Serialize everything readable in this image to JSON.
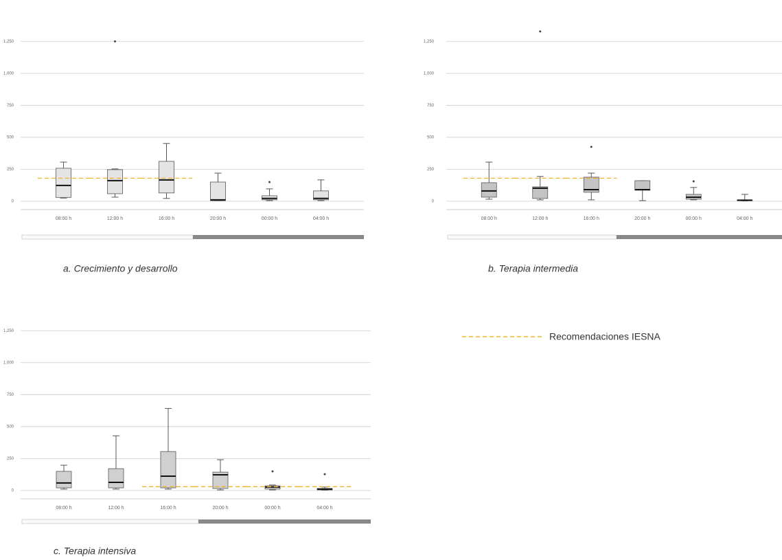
{
  "chart_data": [
    {
      "type": "box",
      "title": "a. Crecimiento y desarrollo",
      "color": "#e4e4e4",
      "categories": [
        "08:00 h",
        "12:00 h",
        "16:00 h",
        "20:00 h",
        "00:00 h",
        "04:00 h"
      ],
      "boxes": [
        [
          25,
          30,
          124,
          258,
          306
        ],
        [
          32,
          59,
          161,
          247,
          253
        ],
        [
          22,
          65,
          167,
          312,
          452
        ],
        [
          5,
          5,
          11,
          150,
          220
        ],
        [
          5,
          11,
          22,
          43,
          97
        ],
        [
          5,
          11,
          22,
          81,
          167
        ]
      ],
      "outliers": [
        [],
        [
          1250
        ],
        [],
        [],
        [
          150
        ],
        []
      ],
      "reference": [
        180,
        180,
        180,
        null,
        null,
        null
      ],
      "ylim": [
        -65,
        1450
      ],
      "yticks": [
        0,
        250,
        500,
        750,
        {
          "value": 1000,
          "label": "1,000"
        },
        {
          "value": 1250,
          "label": "1,250"
        }
      ],
      "grid": true
    },
    {
      "type": "box",
      "title": "b. Terapia intermedia",
      "color": "#c4c4c4",
      "categories": [
        "08:00 h",
        "12:00 h",
        "16:00 h",
        "20:00 h",
        "00:00 h",
        "04:00 h"
      ],
      "boxes": [
        [
          16,
          32,
          81,
          145,
          306
        ],
        [
          11,
          22,
          102,
          113,
          194
        ],
        [
          11,
          70,
          91,
          188,
          220
        ],
        [
          5,
          86,
          91,
          161,
          161
        ],
        [
          11,
          16,
          32,
          54,
          108
        ],
        [
          3,
          5,
          8,
          11,
          54
        ]
      ],
      "outliers": [
        [],
        [
          1328
        ],
        [
          425
        ],
        [],
        [
          156
        ],
        []
      ],
      "reference": [
        180,
        180,
        180,
        null,
        null,
        null
      ],
      "ylim": [
        -65,
        1450
      ],
      "yticks": [
        0,
        250,
        500,
        750,
        {
          "value": 1000,
          "label": "1,000"
        },
        {
          "value": 1250,
          "label": "1,250"
        }
      ],
      "grid": true
    },
    {
      "type": "box",
      "title": "c. Terapia intensiva",
      "color": "#d0d0d0",
      "categories": [
        "08:00 h",
        "12:00 h",
        "16:00 h",
        "20:00 h",
        "00:00 h",
        "04:00 h"
      ],
      "boxes": [
        [
          11,
          21,
          59,
          150,
          198
        ],
        [
          11,
          21,
          64,
          171,
          428
        ],
        [
          11,
          21,
          112,
          305,
          642
        ],
        [
          5,
          16,
          123,
          144,
          241
        ],
        [
          5,
          11,
          27,
          37,
          43
        ],
        [
          3,
          5,
          11,
          16,
          27
        ]
      ],
      "outliers": [
        [],
        [],
        [],
        [],
        [
          150
        ],
        [
          128
        ]
      ],
      "reference": [
        null,
        null,
        30,
        30,
        30,
        30
      ],
      "ylim": [
        -65,
        1450
      ],
      "yticks": [
        0,
        250,
        500,
        750,
        {
          "value": 1000,
          "label": "1,000"
        },
        {
          "value": 1250,
          "label": "1,250"
        }
      ],
      "grid": true
    }
  ],
  "reference_legend": {
    "label": "Recomendaciones IESNA",
    "color": "#f0b429"
  }
}
